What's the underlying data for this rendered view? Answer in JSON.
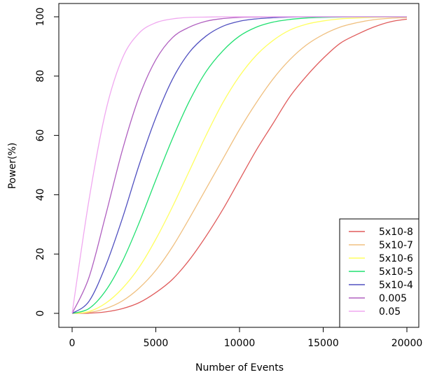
{
  "chart_data": {
    "type": "line",
    "title": "",
    "xlabel": "Number of Events",
    "ylabel": "Power(%)",
    "xlim": [
      0,
      20000
    ],
    "ylim": [
      0,
      100
    ],
    "xticks": [
      0,
      5000,
      10000,
      15000,
      20000
    ],
    "yticks": [
      0,
      20,
      40,
      60,
      80,
      100
    ],
    "grid": false,
    "legend_position": "bottom-right",
    "x": [
      0,
      1000,
      2000,
      3000,
      4000,
      5000,
      6000,
      7000,
      8000,
      9000,
      10000,
      11000,
      12000,
      13000,
      14000,
      15000,
      16000,
      17000,
      18000,
      19000,
      20000
    ],
    "series": [
      {
        "name": "5x10-8",
        "color": "#e05c5c",
        "values": [
          0,
          0.05,
          0.5,
          1.6,
          3.6,
          7,
          11.5,
          18,
          26,
          35,
          45,
          55,
          64,
          73,
          80,
          86,
          91,
          94,
          96.5,
          98.3,
          99.2
        ]
      },
      {
        "name": "5x10-7",
        "color": "#f0c080",
        "values": [
          0,
          0.3,
          1.6,
          4.2,
          8.5,
          14.5,
          22.5,
          32,
          42,
          52,
          62,
          71,
          79,
          85.5,
          90.5,
          94,
          96.5,
          98,
          99,
          99.5,
          99.7
        ]
      },
      {
        "name": "5x10-6",
        "color": "#ffff60",
        "values": [
          0,
          0.6,
          3.4,
          8.4,
          15.5,
          25,
          36,
          48,
          60,
          71,
          80,
          87,
          92,
          95.5,
          97.5,
          98.6,
          99.3,
          99.6,
          99.8,
          99.9,
          100
        ]
      },
      {
        "name": "5x10-5",
        "color": "#20e070",
        "values": [
          0,
          1.6,
          7.6,
          17.5,
          30.5,
          45,
          59,
          71.5,
          81.5,
          88.5,
          93.5,
          96.5,
          98.2,
          99.1,
          99.6,
          99.8,
          99.9,
          100,
          100,
          100,
          100
        ]
      },
      {
        "name": "5x10-4",
        "color": "#5050c0",
        "values": [
          0,
          4,
          16,
          32,
          50,
          66,
          79,
          88,
          93.5,
          96.8,
          98.5,
          99.3,
          99.7,
          99.9,
          100,
          100,
          100,
          100,
          100,
          100,
          100
        ]
      },
      {
        "name": "0.005",
        "color": "#b060c0",
        "values": [
          0,
          12,
          33,
          55,
          73,
          85.5,
          93,
          96.5,
          98.5,
          99.4,
          99.8,
          99.9,
          100,
          100,
          100,
          100,
          100,
          100,
          100,
          100,
          100
        ]
      },
      {
        "name": "0.05",
        "color": "#f0a8f0",
        "values": [
          0,
          38,
          68,
          86,
          94.5,
          98,
          99.3,
          99.8,
          99.9,
          100,
          100,
          100,
          100,
          100,
          100,
          100,
          100,
          100,
          100,
          100,
          100
        ]
      }
    ]
  }
}
